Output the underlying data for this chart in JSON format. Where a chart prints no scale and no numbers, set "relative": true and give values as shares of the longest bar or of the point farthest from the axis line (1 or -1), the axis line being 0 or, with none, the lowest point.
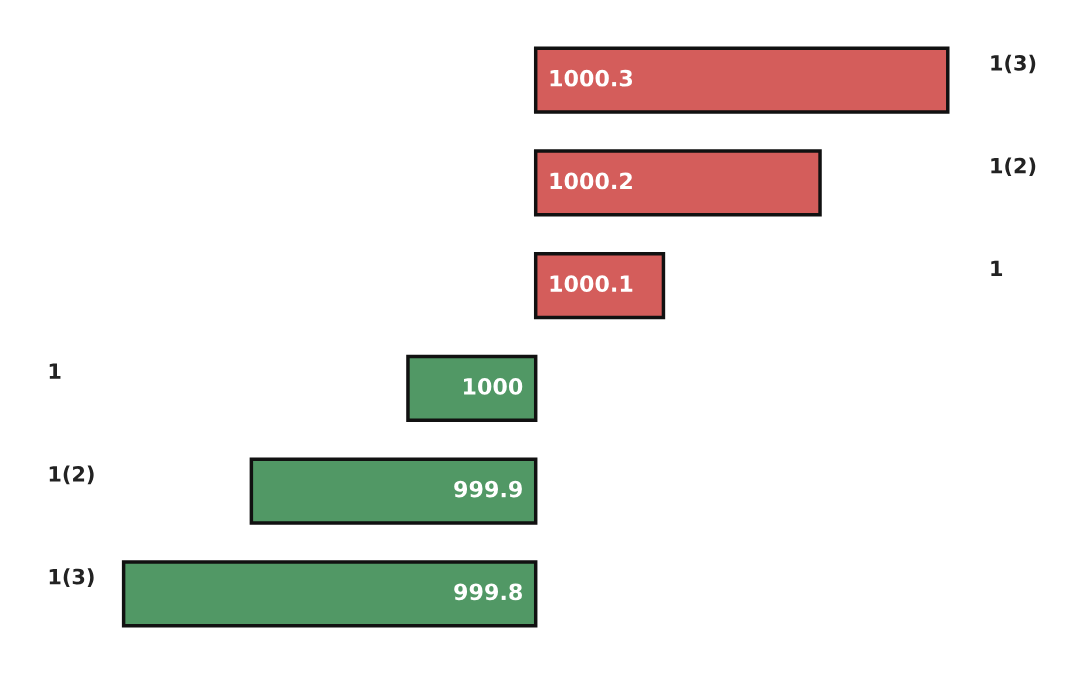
{
  "chart_data": {
    "type": "bar",
    "orientation": "horizontal",
    "relative": true,
    "categories": [
      "1000.3",
      "1000.2",
      "1000.1",
      "1000",
      "999.9",
      "999.8"
    ],
    "values": [
      1.0,
      0.69,
      0.31,
      -0.31,
      -0.69,
      -1.0
    ],
    "colors": [
      "#d45d5b",
      "#d45d5b",
      "#d45d5b",
      "#519865",
      "#519865",
      "#519865"
    ],
    "annotations": [
      "1(3)",
      "1(2)",
      "1",
      "1",
      "1(2)",
      "1(3)"
    ]
  }
}
